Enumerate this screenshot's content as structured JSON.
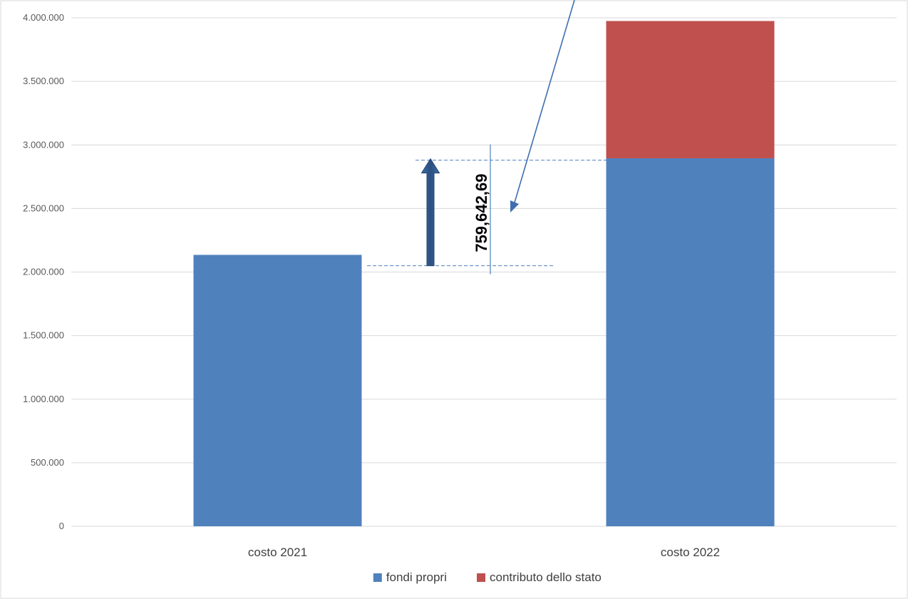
{
  "chart_data": {
    "type": "bar",
    "stacked": true,
    "categories": [
      "costo 2021",
      "costo 2022"
    ],
    "series": [
      {
        "name": "fondi propri",
        "values": [
          2135000,
          2895000
        ],
        "color": "#4F81BD"
      },
      {
        "name": "contributo dello stato",
        "values": [
          0,
          1080000
        ],
        "color": "#C0504D"
      }
    ],
    "ylim": [
      0,
      4000000
    ],
    "yticks": [
      0,
      500000,
      1000000,
      1500000,
      2000000,
      2500000,
      3000000,
      3500000,
      4000000
    ],
    "ytick_labels": [
      "0",
      "500.000",
      "1.000.000",
      "1.500.000",
      "2.000.000",
      "2.500.000",
      "3.000.000",
      "3.500.000",
      "4.000.000"
    ],
    "grid": true,
    "legend_position": "bottom",
    "annotation": {
      "label": "759,642,69",
      "from_value": 2050000,
      "to_value": 2880000,
      "arrow_color": "#2E5A8E",
      "line_color": "#4F81BD"
    }
  }
}
